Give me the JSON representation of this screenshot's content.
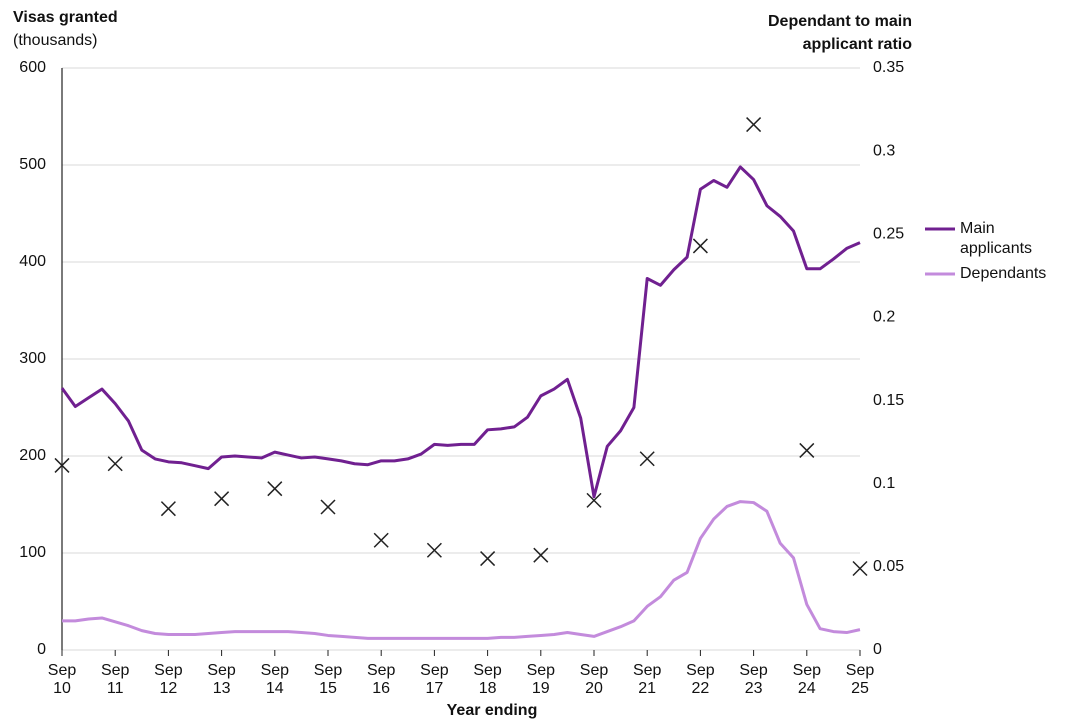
{
  "chart_data": {
    "type": "line",
    "ylabel": "Visas granted",
    "ylabel_unit": "(thousands)",
    "y2label": [
      "Dependant to main",
      "applicant ratio"
    ],
    "xlabel": "Year ending",
    "categories": [
      "Sep 10",
      null,
      null,
      null,
      "Sep 11",
      null,
      null,
      null,
      "Sep 12",
      null,
      null,
      null,
      "Sep 13",
      null,
      null,
      null,
      "Sep 14",
      null,
      null,
      null,
      "Sep 15",
      null,
      null,
      null,
      "Sep 16",
      null,
      null,
      null,
      "Sep 17",
      null,
      null,
      null,
      "Sep 18",
      null,
      null,
      null,
      "Sep 19",
      null,
      null,
      null,
      "Sep 20",
      null,
      null,
      null,
      "Sep 21",
      null,
      null,
      null,
      "Sep 22",
      null,
      null,
      null,
      "Sep 23",
      null,
      null,
      null,
      "Sep 24",
      null,
      null,
      null,
      "Sep 25"
    ],
    "series": [
      {
        "name": "Main applicants",
        "color": "#702090",
        "values": [
          270,
          251,
          260,
          269,
          254,
          236,
          206,
          197,
          194,
          193,
          190,
          187,
          199,
          200,
          199,
          198,
          204,
          201,
          198,
          199,
          197,
          195,
          192,
          191,
          195,
          195,
          197,
          202,
          212,
          211,
          212,
          212,
          227,
          228,
          230,
          240,
          262,
          269,
          279,
          239,
          158,
          210,
          226,
          250,
          383,
          376,
          392,
          405,
          475,
          484,
          477,
          498,
          485,
          458,
          447,
          432,
          393,
          393,
          403,
          414,
          420
        ]
      },
      {
        "name": "Dependants",
        "color": "#c38bdc",
        "values": [
          30,
          30,
          32,
          33,
          29,
          25,
          20,
          17,
          16,
          16,
          16,
          17,
          18,
          19,
          19,
          19,
          19,
          19,
          18,
          17,
          15,
          14,
          13,
          12,
          12,
          12,
          12,
          12,
          12,
          12,
          12,
          12,
          12,
          13,
          13,
          14,
          15,
          16,
          18,
          16,
          14,
          19,
          24,
          30,
          45,
          55,
          72,
          80,
          115,
          135,
          148,
          153,
          152,
          143,
          110,
          95,
          47,
          22,
          19,
          18,
          21
        ]
      }
    ],
    "ratio": {
      "axis": "y2",
      "color": "#222222",
      "marker": "x",
      "values": [
        0.111,
        null,
        null,
        null,
        0.112,
        null,
        null,
        null,
        0.085,
        null,
        null,
        null,
        0.091,
        null,
        null,
        null,
        0.097,
        null,
        null,
        null,
        0.086,
        null,
        null,
        null,
        0.066,
        null,
        null,
        null,
        0.06,
        null,
        null,
        null,
        0.055,
        null,
        null,
        null,
        0.057,
        null,
        null,
        null,
        0.09,
        null,
        null,
        null,
        0.115,
        null,
        null,
        null,
        0.243,
        null,
        null,
        null,
        0.316,
        null,
        null,
        null,
        0.12,
        null,
        null,
        null,
        0.049
      ]
    },
    "ylim": [
      0,
      600
    ],
    "yticks": [
      0,
      100,
      200,
      300,
      400,
      500,
      600
    ],
    "y2lim": [
      0,
      0.35
    ],
    "y2ticks": [
      0,
      0.05,
      0.1,
      0.15,
      0.2,
      0.25,
      0.3,
      0.35
    ],
    "grid": true
  }
}
